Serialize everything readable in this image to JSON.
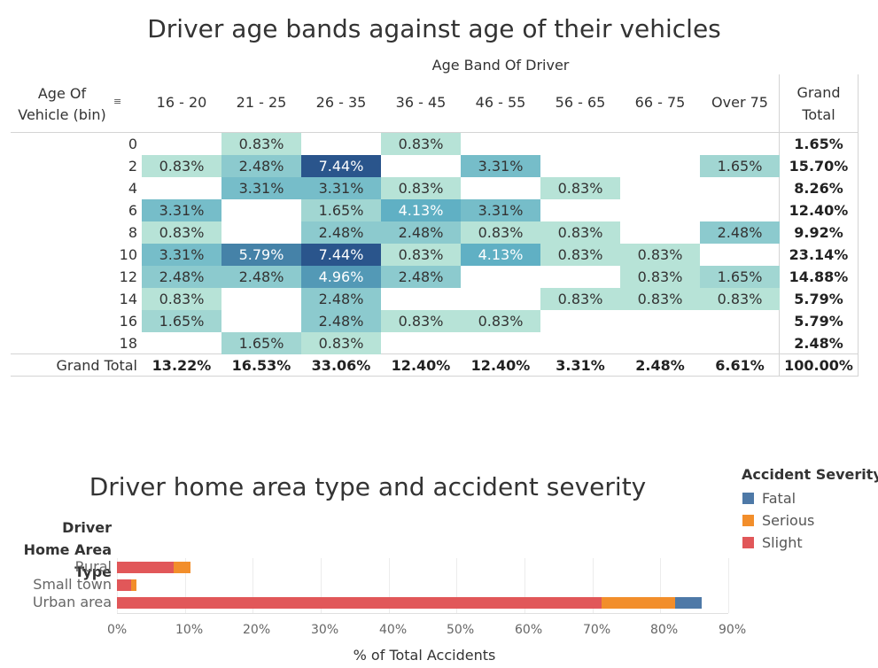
{
  "chart_data": [
    {
      "type": "heatmap",
      "title": "Driver age bands against age of their vehicles",
      "column_axis_label": "Age Band Of Driver",
      "row_axis_label": "Age Of Vehicle (bin)",
      "columns": [
        "16 - 20",
        "21 - 25",
        "26 - 35",
        "36 - 45",
        "46 - 55",
        "56 - 65",
        "66 - 75",
        "Over 75"
      ],
      "rows": [
        "0",
        "2",
        "4",
        "6",
        "8",
        "10",
        "12",
        "14",
        "16",
        "18"
      ],
      "values": [
        [
          null,
          0.83,
          null,
          0.83,
          null,
          null,
          null,
          null
        ],
        [
          0.83,
          2.48,
          7.44,
          null,
          3.31,
          null,
          null,
          1.65
        ],
        [
          null,
          3.31,
          3.31,
          0.83,
          null,
          0.83,
          null,
          null
        ],
        [
          3.31,
          null,
          1.65,
          4.13,
          3.31,
          null,
          null,
          null
        ],
        [
          0.83,
          null,
          2.48,
          2.48,
          0.83,
          0.83,
          null,
          2.48
        ],
        [
          3.31,
          5.79,
          7.44,
          0.83,
          4.13,
          0.83,
          0.83,
          null
        ],
        [
          2.48,
          2.48,
          4.96,
          2.48,
          null,
          null,
          0.83,
          1.65
        ],
        [
          0.83,
          null,
          2.48,
          null,
          null,
          0.83,
          0.83,
          0.83
        ],
        [
          1.65,
          null,
          2.48,
          0.83,
          0.83,
          null,
          null,
          null
        ],
        [
          null,
          1.65,
          0.83,
          null,
          null,
          null,
          null,
          null
        ]
      ],
      "value_format": "percent_2dp",
      "grand_total_label": "Grand Total",
      "row_totals": [
        1.65,
        15.7,
        8.26,
        12.4,
        9.92,
        23.14,
        14.88,
        5.79,
        5.79,
        2.48
      ],
      "column_totals": [
        13.22,
        16.53,
        33.06,
        12.4,
        12.4,
        3.31,
        2.48,
        6.61
      ],
      "overall_total": 100.0
    },
    {
      "type": "bar",
      "orientation": "horizontal",
      "stacked": true,
      "title": "Driver home area type and accident severity",
      "ylabel": "Driver Home Area Type",
      "xlabel": "% of Total Accidents",
      "categories": [
        "Rural",
        "Small town",
        "Urban area"
      ],
      "series": [
        {
          "name": "Slight",
          "color": "#e15759",
          "values": [
            8.3,
            2.1,
            71.3
          ]
        },
        {
          "name": "Serious",
          "color": "#f28e2b",
          "values": [
            2.5,
            0.8,
            10.9
          ]
        },
        {
          "name": "Fatal",
          "color": "#4e79a7",
          "values": [
            0,
            0,
            3.9
          ]
        }
      ],
      "xlim": [
        0,
        90
      ],
      "xticks": [
        0,
        10,
        20,
        30,
        40,
        50,
        60,
        70,
        80,
        90
      ],
      "tick_suffix": "%",
      "legend": {
        "title": "Accident Severity",
        "items": [
          "Fatal",
          "Serious",
          "Slight"
        ],
        "placement": "top-right"
      }
    }
  ]
}
